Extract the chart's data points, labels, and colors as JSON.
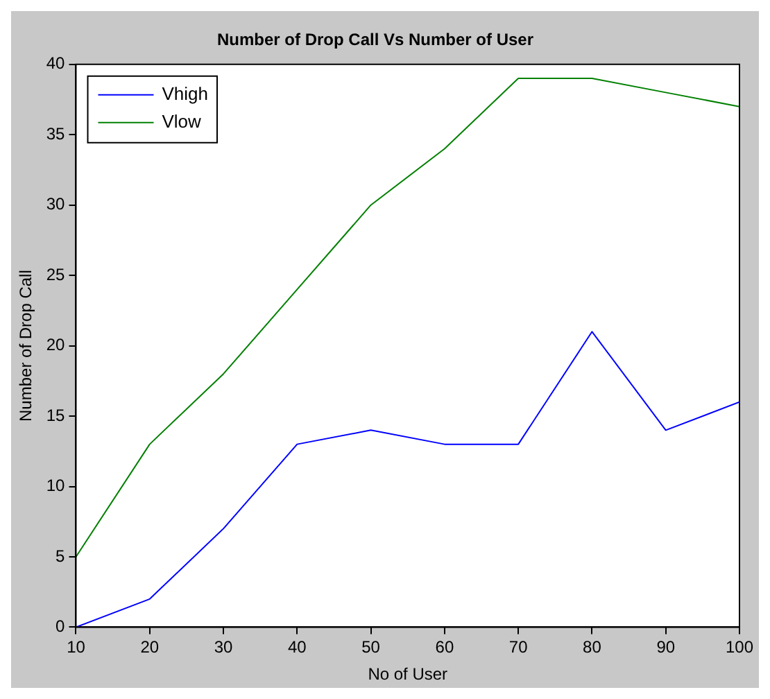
{
  "chart_data": {
    "type": "line",
    "title": "Number of Drop Call Vs Number of User",
    "xlabel": "No of User",
    "ylabel": "Number of Drop Call",
    "x": [
      10,
      20,
      30,
      40,
      50,
      60,
      70,
      80,
      90,
      100
    ],
    "series": [
      {
        "name": "Vhigh",
        "color": "#0000ff",
        "values": [
          0,
          2,
          7,
          13,
          14,
          13,
          13,
          21,
          14,
          16
        ]
      },
      {
        "name": "Vlow",
        "color": "#008000",
        "values": [
          5,
          13,
          18,
          24,
          30,
          34,
          39,
          39,
          38,
          37
        ]
      }
    ],
    "xlim": [
      10,
      100
    ],
    "xticks": [
      10,
      20,
      30,
      40,
      50,
      60,
      70,
      80,
      90,
      100
    ],
    "ylim": [
      0,
      40
    ],
    "yticks": [
      0,
      5,
      10,
      15,
      20,
      25,
      30,
      35,
      40
    ],
    "grid": false,
    "legend": "top left",
    "marker": "none",
    "line_style": "solid"
  }
}
